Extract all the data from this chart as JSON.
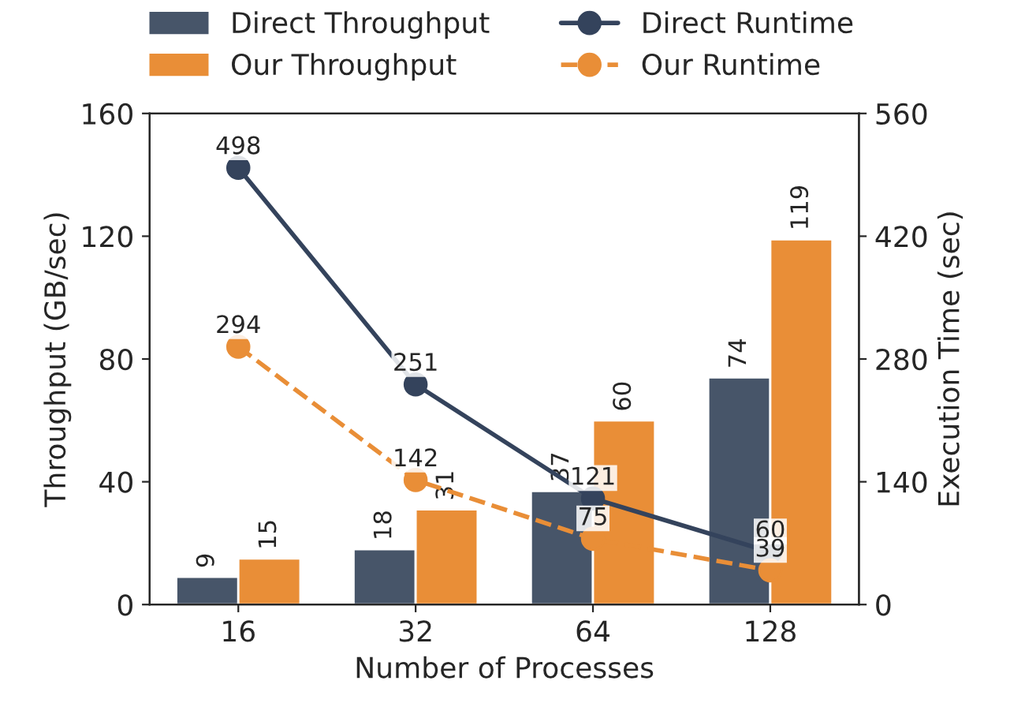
{
  "chart_data": {
    "type": "bar",
    "xlabel": "Number of Processes",
    "ylabel": "Throughput (GB/sec)",
    "y2label": "Execution Time (sec)",
    "categories": [
      "16",
      "32",
      "64",
      "128"
    ],
    "series": [
      {
        "name": "Direct Throughput",
        "color": "#475569",
        "values": [
          9,
          18,
          37,
          74
        ]
      },
      {
        "name": "Our Throughput",
        "color": "#e98e37",
        "values": [
          15,
          31,
          60,
          119
        ]
      },
      {
        "name": "Direct Runtime",
        "type": "line",
        "axis": "y2",
        "color": "#34435c",
        "marker": "circle",
        "line_style": "solid",
        "values": [
          498,
          251,
          121,
          60
        ]
      },
      {
        "name": "Our Runtime",
        "type": "line",
        "axis": "y2",
        "color": "#e98e37",
        "marker": "circle",
        "line_style": "dashed",
        "values": [
          294,
          142,
          75,
          39
        ]
      }
    ],
    "ylim": [
      0,
      160
    ],
    "yticks": [
      0,
      40,
      80,
      120,
      160
    ],
    "y2lim": [
      0,
      560
    ],
    "y2ticks": [
      0,
      140,
      280,
      420,
      560
    ],
    "data_labels": true,
    "legend": "top",
    "grid": false
  }
}
